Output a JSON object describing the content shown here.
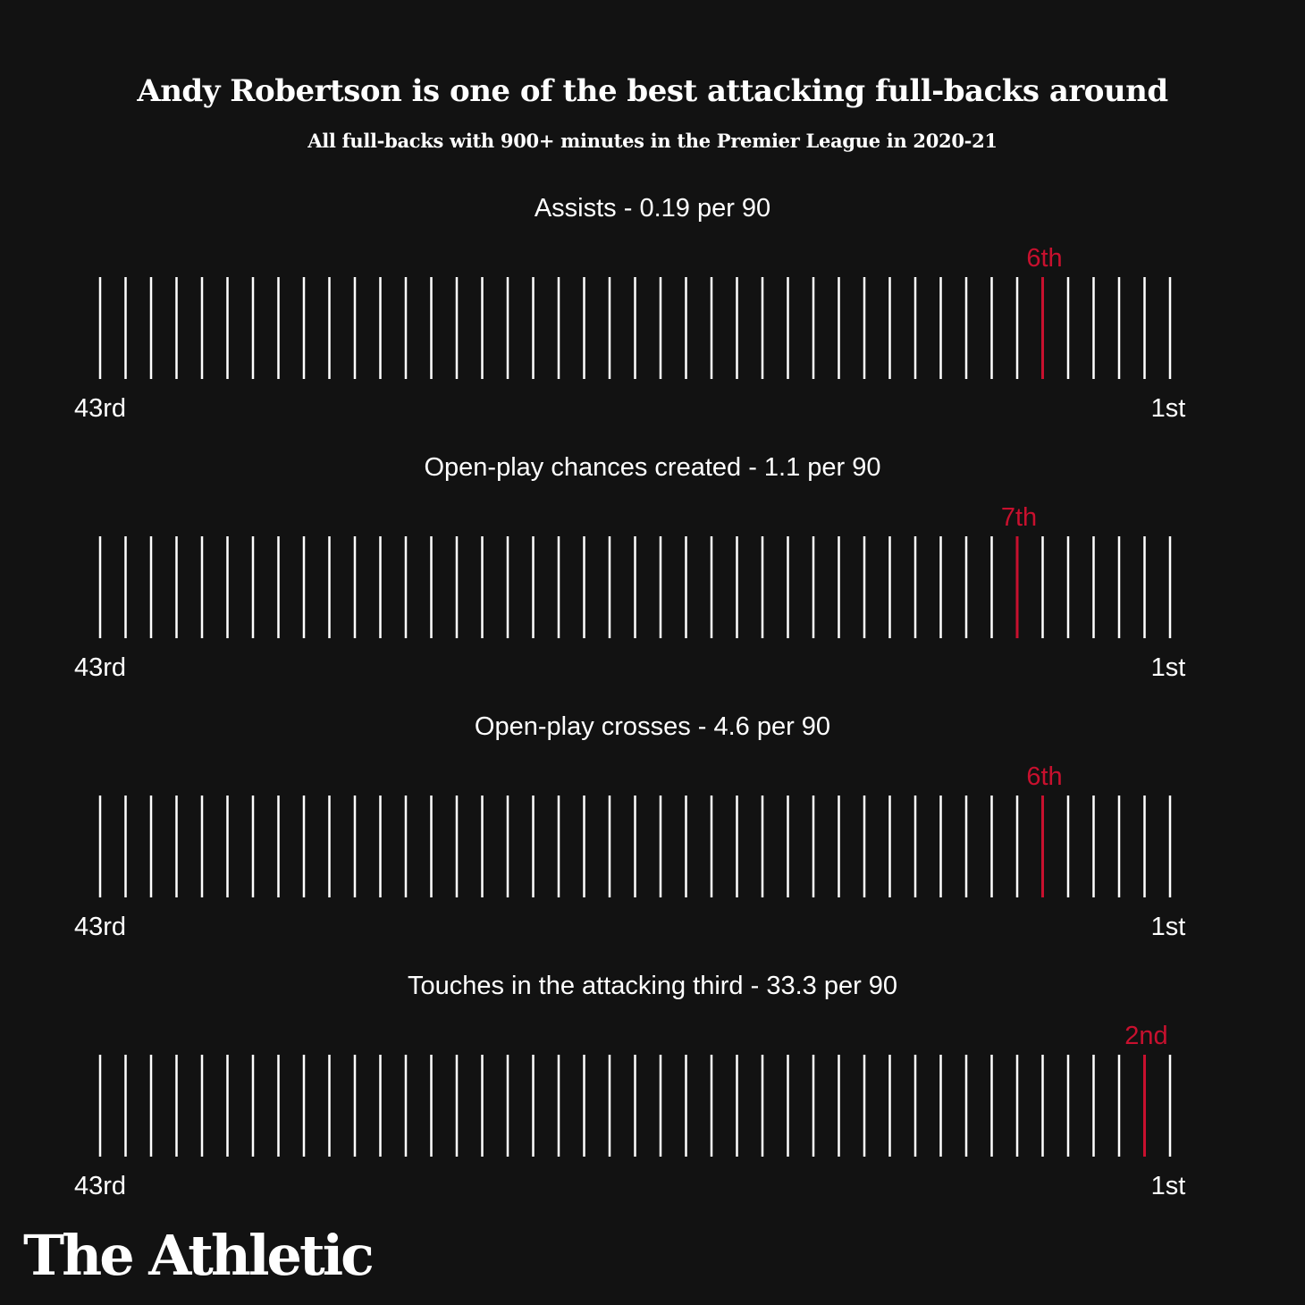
{
  "header": {
    "title": "Andy Robertson is one of the best attacking full-backs around",
    "subtitle": "All full-backs with 900+ minutes in the Premier League in 2020-21"
  },
  "colors": {
    "background": "#121212",
    "tick": "#ffffff",
    "highlight": "#c8102e"
  },
  "chart_data": {
    "type": "strip",
    "total_players": 43,
    "rank_range": [
      43,
      1
    ],
    "axis_labels": {
      "left": "43rd",
      "right": "1st"
    },
    "metrics": [
      {
        "title": "Assists - 0.19 per 90",
        "rank": 6,
        "rank_label": "6th"
      },
      {
        "title": "Open-play chances created - 1.1 per 90",
        "rank": 7,
        "rank_label": "7th"
      },
      {
        "title": "Open-play crosses - 4.6 per 90",
        "rank": 6,
        "rank_label": "6th"
      },
      {
        "title": "Touches in the attacking third - 33.3 per 90",
        "rank": 2,
        "rank_label": "2nd"
      }
    ]
  },
  "footer": {
    "logo_text": "The Athletic"
  }
}
